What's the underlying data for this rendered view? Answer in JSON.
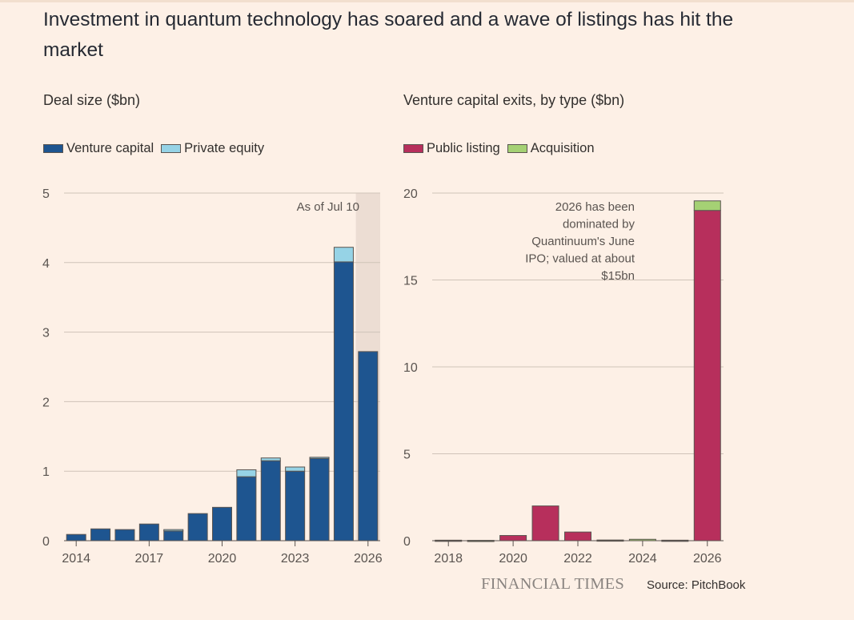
{
  "title": "Investment in quantum technology has soared and a wave of listings has hit the market",
  "colors": {
    "background": "#fdf0e6",
    "venture_capital": "#1e5590",
    "private_equity": "#96d3e6",
    "public_listing": "#b72f5c",
    "acquisition": "#a5d174",
    "bar_outline": "#5a5450",
    "gridline": "#cfc3b8",
    "shaded_period": "#ecddd3"
  },
  "footer": {
    "logo": "FINANCIAL TIMES",
    "source": "Source: PitchBook"
  },
  "chart_data": [
    {
      "type": "bar",
      "stacked": true,
      "title": "Deal size ($bn)",
      "legend": [
        "Venture capital",
        "Private equity"
      ],
      "x_ticks": [
        "2014",
        "2017",
        "2020",
        "2023",
        "2026"
      ],
      "categories": [
        "2014",
        "2015",
        "2016",
        "2017",
        "2018",
        "2019",
        "2020",
        "2021",
        "2022",
        "2023",
        "2024",
        "2025",
        "2026"
      ],
      "series": [
        {
          "name": "Venture capital",
          "color": "#1e5590",
          "values": [
            0.09,
            0.17,
            0.16,
            0.24,
            0.14,
            0.39,
            0.48,
            0.92,
            1.15,
            1.0,
            1.19,
            4.01,
            2.72
          ]
        },
        {
          "name": "Private equity",
          "color": "#96d3e6",
          "values": [
            0,
            0,
            0,
            0,
            0.02,
            0,
            0,
            0.1,
            0.04,
            0.06,
            0.01,
            0.21,
            0
          ]
        }
      ],
      "ylim": [
        0,
        5
      ],
      "y_ticks": [
        0,
        1,
        2,
        3,
        4,
        5
      ],
      "shaded_category": "2026",
      "annotation": "As of Jul 10",
      "grid": true
    },
    {
      "type": "bar",
      "stacked": true,
      "title": "Venture capital exits, by type ($bn)",
      "legend": [
        "Public listing",
        "Acquisition"
      ],
      "x_ticks": [
        "2018",
        "2020",
        "2022",
        "2024",
        "2026"
      ],
      "categories": [
        "2018",
        "2019",
        "2020",
        "2021",
        "2022",
        "2023",
        "2024",
        "2025",
        "2026"
      ],
      "series": [
        {
          "name": "Public listing",
          "color": "#b72f5c",
          "values": [
            0,
            0,
            0.3,
            2.0,
            0.5,
            0,
            0,
            0,
            19.0
          ]
        },
        {
          "name": "Acquisition",
          "color": "#a5d174",
          "values": [
            0.03,
            0.02,
            0,
            0,
            0,
            0.04,
            0.08,
            0.03,
            0.55
          ]
        }
      ],
      "ylim": [
        0,
        20
      ],
      "y_ticks": [
        0,
        5,
        10,
        15,
        20
      ],
      "annotation_lines": [
        "2026 has been",
        "dominated by",
        "Quantinuum's June",
        "IPO; valued at about",
        "$15bn"
      ],
      "grid": true
    }
  ]
}
